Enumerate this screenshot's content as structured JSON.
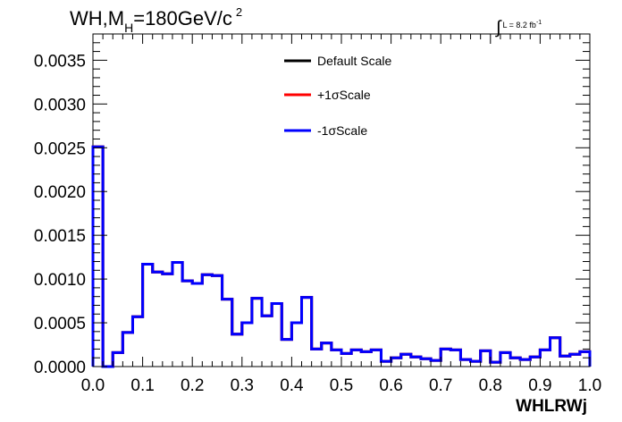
{
  "header": {
    "title_main": "WH,M",
    "title_sub": "H",
    "title_rest": "=180GeV/c",
    "title_sup": "2",
    "lumi_integral": "∫",
    "lumi_text": "L = 8.2 fb",
    "lumi_sup": "-1"
  },
  "chart_data": {
    "type": "line",
    "style": "step-histogram",
    "xlabel": "WHLRWj",
    "ylabel": "",
    "xlim": [
      0.0,
      1.0
    ],
    "ylim": [
      0.0,
      0.0038
    ],
    "x_ticks": [
      "0.0",
      "0.1",
      "0.2",
      "0.3",
      "0.4",
      "0.5",
      "0.6",
      "0.7",
      "0.8",
      "0.9",
      "1.0"
    ],
    "y_ticks": [
      "0.0000",
      "0.0005",
      "0.0010",
      "0.0015",
      "0.0020",
      "0.0025",
      "0.0030",
      "0.0035"
    ],
    "bin_edges": [
      0.0,
      0.02,
      0.04,
      0.06,
      0.08,
      0.1,
      0.12,
      0.14,
      0.16,
      0.18,
      0.2,
      0.22,
      0.24,
      0.26,
      0.28,
      0.3,
      0.32,
      0.34,
      0.36,
      0.38,
      0.4,
      0.42,
      0.44,
      0.46,
      0.48,
      0.5,
      0.52,
      0.54,
      0.56,
      0.58,
      0.6,
      0.62,
      0.64,
      0.66,
      0.68,
      0.7,
      0.72,
      0.74,
      0.76,
      0.78,
      0.8,
      0.82,
      0.84,
      0.86,
      0.88,
      0.9,
      0.92,
      0.94,
      0.96,
      0.98,
      1.0
    ],
    "legend_position": "top-center",
    "grid": false,
    "series": [
      {
        "name": "Default Scale",
        "color": "#000000",
        "values": [
          0.00251,
          0.0,
          0.00016,
          0.00039,
          0.00057,
          0.00117,
          0.00108,
          0.00106,
          0.00119,
          0.00098,
          0.00095,
          0.00105,
          0.00104,
          0.00077,
          0.00037,
          0.0005,
          0.00078,
          0.00058,
          0.00072,
          0.00031,
          0.0005,
          0.00079,
          0.0002,
          0.00027,
          0.00019,
          0.00015,
          0.00019,
          0.00017,
          0.00019,
          6e-05,
          0.0001,
          0.00014,
          0.00011,
          9e-05,
          7e-05,
          0.0002,
          0.00019,
          8e-05,
          6e-05,
          0.00018,
          5e-05,
          0.00016,
          0.0001,
          8e-05,
          0.00011,
          0.00019,
          0.00033,
          0.00012,
          0.00014,
          0.00017
        ]
      },
      {
        "name": "+1σScale",
        "color": "#ff0000",
        "values": [
          0.00251,
          0.0,
          0.00016,
          0.00039,
          0.00057,
          0.00117,
          0.00108,
          0.00106,
          0.00119,
          0.00098,
          0.00095,
          0.00105,
          0.00104,
          0.00077,
          0.00037,
          0.0005,
          0.00078,
          0.00058,
          0.00072,
          0.00031,
          0.0005,
          0.00079,
          0.0002,
          0.00027,
          0.00019,
          0.00015,
          0.00019,
          0.00017,
          0.00019,
          6e-05,
          0.0001,
          0.00014,
          0.00011,
          9e-05,
          7e-05,
          0.0002,
          0.00019,
          8e-05,
          6e-05,
          0.00018,
          5e-05,
          0.00016,
          0.0001,
          8e-05,
          0.00011,
          0.00019,
          0.00033,
          0.00012,
          0.00014,
          0.00017
        ]
      },
      {
        "name": "-1σScale",
        "color": "#0000ff",
        "values": [
          0.00251,
          0.0,
          0.00016,
          0.00039,
          0.00057,
          0.00117,
          0.00108,
          0.00106,
          0.00119,
          0.00098,
          0.00095,
          0.00105,
          0.00104,
          0.00077,
          0.00037,
          0.0005,
          0.00078,
          0.00058,
          0.00072,
          0.00031,
          0.0005,
          0.00079,
          0.0002,
          0.00027,
          0.00019,
          0.00015,
          0.00019,
          0.00017,
          0.00019,
          6e-05,
          0.0001,
          0.00014,
          0.00011,
          9e-05,
          7e-05,
          0.0002,
          0.00019,
          8e-05,
          6e-05,
          0.00018,
          5e-05,
          0.00016,
          0.0001,
          8e-05,
          0.00011,
          0.00019,
          0.00033,
          0.00012,
          0.00014,
          0.00017
        ]
      }
    ]
  }
}
